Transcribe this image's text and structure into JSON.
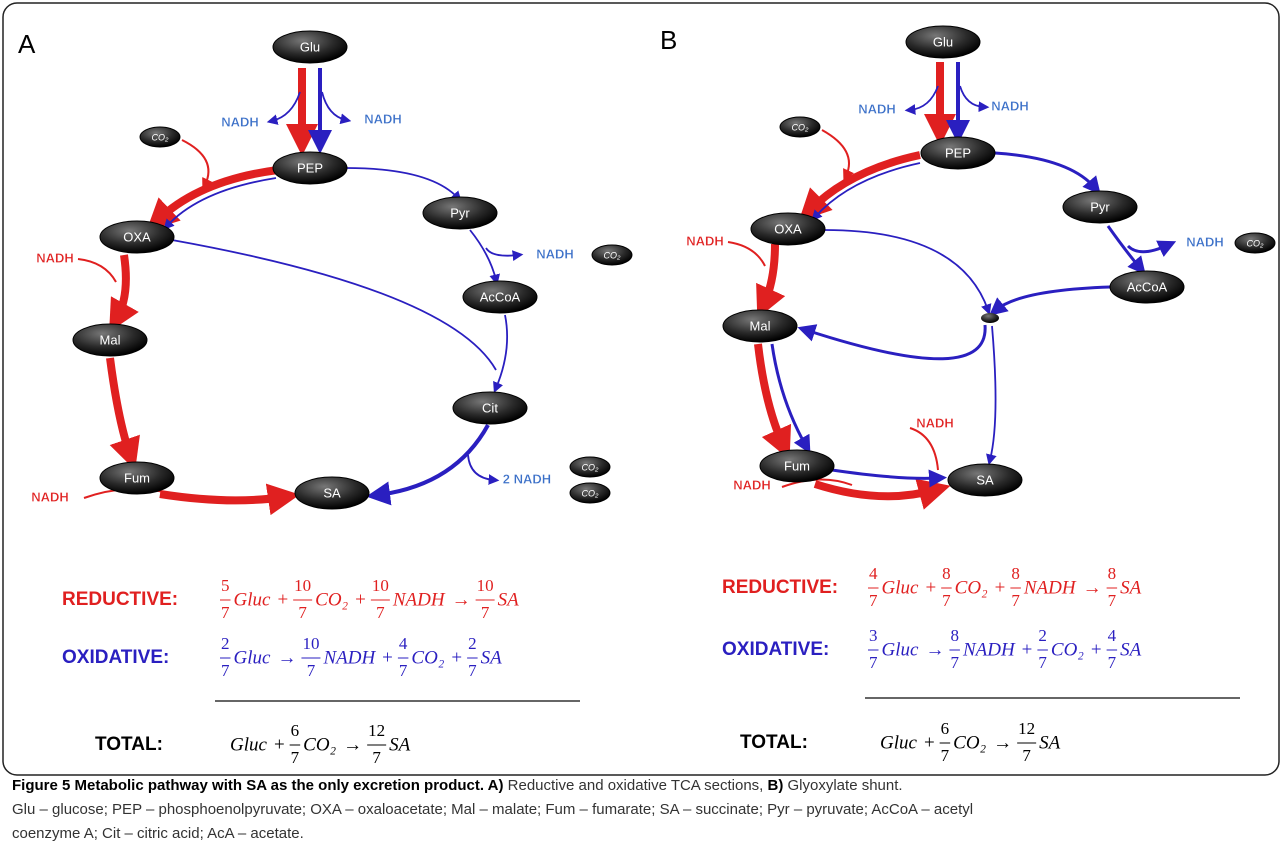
{
  "panels": [
    {
      "label": "A",
      "nodes": [
        "Glu",
        "PEP",
        "OXA",
        "Pyr",
        "AcCoA",
        "Mal",
        "Cit",
        "Fum",
        "SA"
      ],
      "small_nodes": [
        "CO₂",
        "CO₂",
        "CO₂",
        "CO₂"
      ],
      "cofactors": [
        "NADH",
        "NADH",
        "NADH",
        "NADH",
        "2 NADH",
        "NADH"
      ],
      "equations": [
        {
          "label": "REDUCTIVE:",
          "terms": [
            {
              "frac": [
                5,
                7
              ]
            },
            "Gluc",
            "+",
            {
              "frac": [
                10,
                7
              ]
            },
            "CO₂",
            "+",
            {
              "frac": [
                10,
                7
              ]
            },
            "NADH",
            "→",
            {
              "frac": [
                10,
                7
              ]
            },
            "SA"
          ]
        },
        {
          "label": "OXIDATIVE:",
          "terms": [
            {
              "frac": [
                2,
                7
              ]
            },
            "Gluc",
            "→",
            {
              "frac": [
                10,
                7
              ]
            },
            "NADH",
            "+",
            {
              "frac": [
                4,
                7
              ]
            },
            "CO₂",
            "+",
            {
              "frac": [
                2,
                7
              ]
            },
            "SA"
          ]
        },
        {
          "label": "TOTAL:",
          "terms": [
            "Gluc",
            "+",
            {
              "frac": [
                6,
                7
              ]
            },
            "CO₂",
            "→",
            {
              "frac": [
                12,
                7
              ]
            },
            "SA"
          ]
        }
      ]
    },
    {
      "label": "B",
      "nodes": [
        "Glu",
        "PEP",
        "OXA",
        "Pyr",
        "AcCoA",
        "Mal",
        "Fum",
        "SA"
      ],
      "small_nodes": [
        "CO₂",
        "CO₂"
      ],
      "cofactors": [
        "NADH",
        "NADH",
        "NADH",
        "NADH",
        "NADH",
        "NADH"
      ],
      "equations": [
        {
          "label": "REDUCTIVE:",
          "terms": [
            {
              "frac": [
                4,
                7
              ]
            },
            "Gluc",
            "+",
            {
              "frac": [
                8,
                7
              ]
            },
            "CO₂",
            "+",
            {
              "frac": [
                8,
                7
              ]
            },
            "NADH",
            "→",
            {
              "frac": [
                8,
                7
              ]
            },
            "SA"
          ]
        },
        {
          "label": "OXIDATIVE:",
          "terms": [
            {
              "frac": [
                3,
                7
              ]
            },
            "Gluc",
            "→",
            {
              "frac": [
                8,
                7
              ]
            },
            "NADH",
            "+",
            {
              "frac": [
                2,
                7
              ]
            },
            "CO₂",
            "+",
            {
              "frac": [
                4,
                7
              ]
            },
            "SA"
          ]
        },
        {
          "label": "TOTAL:",
          "terms": [
            "Gluc",
            "+",
            {
              "frac": [
                6,
                7
              ]
            },
            "CO₂",
            "→",
            {
              "frac": [
                12,
                7
              ]
            },
            "SA"
          ]
        }
      ]
    }
  ],
  "caption": {
    "lines": [
      [
        {
          "text": "Figure 5 Metabolic pathway with SA as the only excretion product.",
          "bold": true
        },
        {
          "text": " A)",
          "bold": true
        },
        {
          "text": " Reductive and oxidative TCA sections, ",
          "bold": false
        },
        {
          "text": "B)",
          "bold": true
        },
        {
          "text": " Glyoxylate shunt.",
          "bold": false
        }
      ],
      [
        {
          "text": "Glu – glucose; PEP – phosphoenolpyruvate; OXA – oxaloacetate; Mal – malate; Fum – fumarate; SA – succinate; Pyr – pyruvate; AcCoA – acetyl",
          "bold": false
        }
      ],
      [
        {
          "text": "coenzyme A; Cit – citric acid; AcA – acetate.",
          "bold": false
        }
      ]
    ]
  }
}
